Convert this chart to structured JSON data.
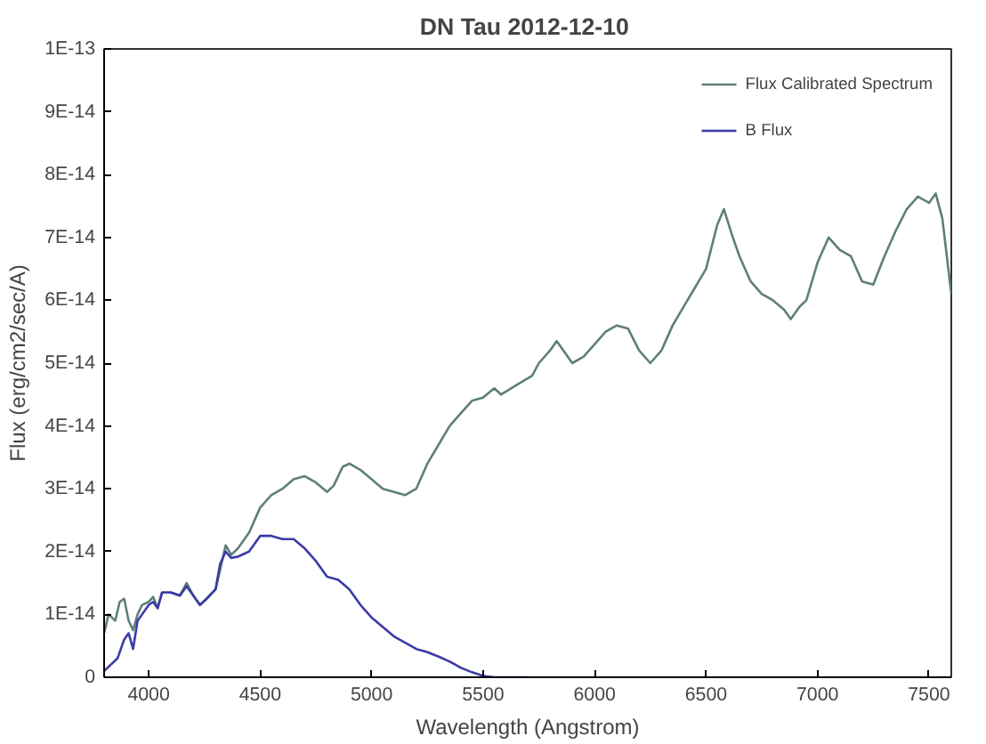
{
  "chart_data": {
    "type": "line",
    "title": "DN Tau  2012-12-10",
    "xlabel": "Wavelength (Angstrom)",
    "ylabel": "Flux (erg/cm2/sec/A)",
    "xlim": [
      3800,
      7600
    ],
    "xticks": [
      4000,
      4500,
      5000,
      5500,
      6000,
      6500,
      7000,
      7500
    ],
    "ylim": [
      0,
      1e-13
    ],
    "yticks": [
      0,
      {
        "value": 1e-14,
        "label": "1E-14"
      },
      {
        "value": 2e-14,
        "label": "2E-14"
      },
      {
        "value": 3e-14,
        "label": "3E-14"
      },
      {
        "value": 4e-14,
        "label": "4E-14"
      },
      {
        "value": 5e-14,
        "label": "5E-14"
      },
      {
        "value": 6e-14,
        "label": "6E-14"
      },
      {
        "value": 7e-14,
        "label": "7E-14"
      },
      {
        "value": 8e-14,
        "label": "8E-14"
      },
      {
        "value": 9e-14,
        "label": "9E-14"
      },
      {
        "value": 1e-13,
        "label": "1E-13"
      }
    ],
    "grid": false,
    "legend": "top right",
    "marker": "none",
    "line_style": "solid",
    "series": [
      {
        "name": "Flux Calibrated Spectrum",
        "color": "#5f7f78",
        "x": [
          3800,
          3820,
          3850,
          3870,
          3890,
          3910,
          3930,
          3950,
          3970,
          4000,
          4020,
          4040,
          4060,
          4100,
          4140,
          4170,
          4200,
          4230,
          4260,
          4300,
          4320,
          4345,
          4370,
          4400,
          4450,
          4500,
          4550,
          4600,
          4650,
          4700,
          4750,
          4800,
          4830,
          4870,
          4900,
          4950,
          5000,
          5050,
          5100,
          5150,
          5200,
          5250,
          5300,
          5350,
          5400,
          5450,
          5500,
          5550,
          5580,
          5650,
          5720,
          5750,
          5800,
          5830,
          5900,
          5950,
          6000,
          6050,
          6100,
          6150,
          6200,
          6250,
          6300,
          6350,
          6400,
          6450,
          6500,
          6550,
          6580,
          6620,
          6650,
          6700,
          6750,
          6800,
          6850,
          6880,
          6920,
          6950,
          7000,
          7050,
          7100,
          7150,
          7200,
          7250,
          7300,
          7350,
          7400,
          7450,
          7500,
          7530,
          7560,
          7600
        ],
        "values": [
          7e-15,
          1e-14,
          9e-15,
          1.2e-14,
          1.25e-14,
          9e-15,
          7.5e-15,
          1e-14,
          1.15e-14,
          1.2e-14,
          1.28e-14,
          1.1e-14,
          1.35e-14,
          1.35e-14,
          1.3e-14,
          1.5e-14,
          1.3e-14,
          1.15e-14,
          1.25e-14,
          1.4e-14,
          1.7e-14,
          2.1e-14,
          1.95e-14,
          2.05e-14,
          2.3e-14,
          2.7e-14,
          2.9e-14,
          3e-14,
          3.15e-14,
          3.2e-14,
          3.1e-14,
          2.95e-14,
          3.05e-14,
          3.35e-14,
          3.4e-14,
          3.3e-14,
          3.15e-14,
          3e-14,
          2.95e-14,
          2.9e-14,
          3e-14,
          3.4e-14,
          3.7e-14,
          4e-14,
          4.2e-14,
          4.4e-14,
          4.45e-14,
          4.6e-14,
          4.5e-14,
          4.65e-14,
          4.8e-14,
          5e-14,
          5.2e-14,
          5.35e-14,
          5e-14,
          5.1e-14,
          5.3e-14,
          5.5e-14,
          5.6e-14,
          5.55e-14,
          5.2e-14,
          5e-14,
          5.2e-14,
          5.6e-14,
          5.9e-14,
          6.2e-14,
          6.5e-14,
          7.2e-14,
          7.45e-14,
          7e-14,
          6.7e-14,
          6.3e-14,
          6.1e-14,
          6e-14,
          5.85e-14,
          5.7e-14,
          5.9e-14,
          6e-14,
          6.6e-14,
          7e-14,
          6.8e-14,
          6.7e-14,
          6.3e-14,
          6.25e-14,
          6.7e-14,
          7.1e-14,
          7.45e-14,
          7.65e-14,
          7.55e-14,
          7.7e-14,
          7.3e-14,
          6.1e-14
        ]
      },
      {
        "name": "B Flux",
        "color": "#3a3aa8",
        "x": [
          3800,
          3830,
          3860,
          3890,
          3910,
          3930,
          3950,
          3970,
          4000,
          4020,
          4040,
          4060,
          4100,
          4140,
          4170,
          4200,
          4230,
          4260,
          4300,
          4320,
          4345,
          4370,
          4400,
          4450,
          4500,
          4550,
          4600,
          4650,
          4700,
          4750,
          4800,
          4850,
          4900,
          4950,
          5000,
          5050,
          5100,
          5150,
          5200,
          5250,
          5300,
          5350,
          5400,
          5450,
          5500,
          5550,
          5600,
          5700
        ],
        "values": [
          1e-15,
          2e-15,
          3e-15,
          6e-15,
          7e-15,
          4.5e-15,
          9e-15,
          1e-14,
          1.15e-14,
          1.2e-14,
          1.1e-14,
          1.35e-14,
          1.35e-14,
          1.3e-14,
          1.45e-14,
          1.3e-14,
          1.15e-14,
          1.25e-14,
          1.4e-14,
          1.8e-14,
          2e-14,
          1.9e-14,
          1.92e-14,
          2e-14,
          2.25e-14,
          2.25e-14,
          2.2e-14,
          2.2e-14,
          2.05e-14,
          1.85e-14,
          1.6e-14,
          1.55e-14,
          1.4e-14,
          1.15e-14,
          9.5e-15,
          8e-15,
          6.5e-15,
          5.5e-15,
          4.5e-15,
          4e-15,
          3.3e-15,
          2.5e-15,
          1.5e-15,
          8e-16,
          2e-16,
          0,
          0,
          0
        ]
      }
    ]
  }
}
